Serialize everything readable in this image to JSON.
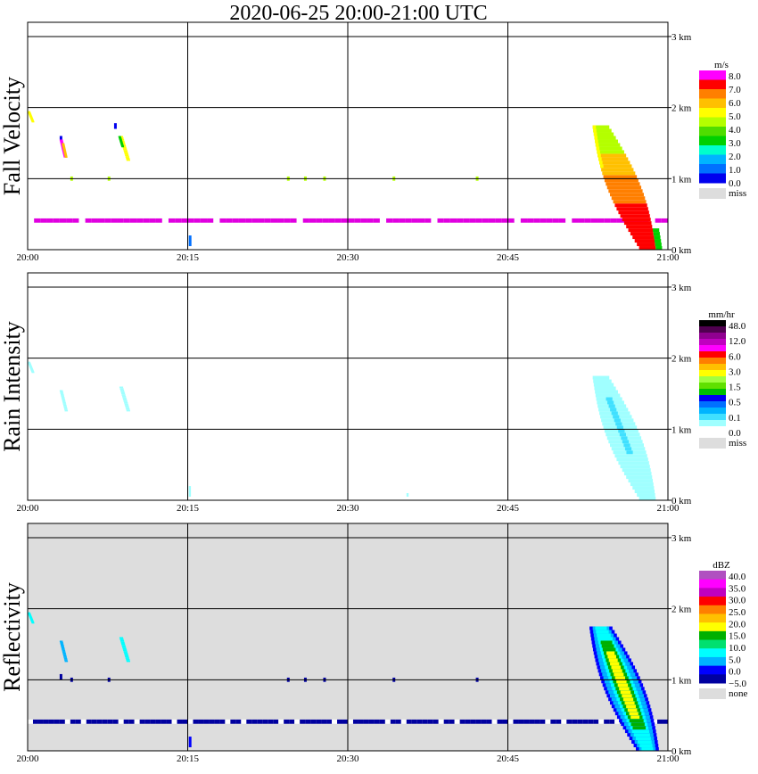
{
  "title": "2020-06-25   20:00-21:00 UTC",
  "chart_data": [
    {
      "type": "heatmap",
      "panel_label": "Fall Velocity",
      "x_ticks": [
        "20:00",
        "20:15",
        "20:30",
        "20:45",
        "21:00"
      ],
      "y_ticks": [
        "0 km",
        "1 km",
        "2 km",
        "3 km"
      ],
      "ylim_km": [
        0,
        3.2
      ],
      "xlim_min": [
        0,
        60
      ],
      "background": "#ffffff",
      "colorbar": {
        "unit": "m/s",
        "colors": [
          "#0000ee",
          "#0070ff",
          "#00b4ff",
          "#00ffcc",
          "#00d000",
          "#4fdd00",
          "#b4ff00",
          "#ffff00",
          "#ffc000",
          "#ff7f00",
          "#ff0000",
          "#ff00ff"
        ],
        "labels": [
          "8.0",
          "7.0",
          "6.0",
          "5.0",
          "4.0",
          "3.0",
          "2.0",
          "1.0",
          "0.0"
        ],
        "miss_label": "miss",
        "miss_color": "#dddddd"
      }
    },
    {
      "type": "heatmap",
      "panel_label": "Rain Intensity",
      "x_ticks": [
        "20:00",
        "20:15",
        "20:30",
        "20:45",
        "21:00"
      ],
      "y_ticks": [
        "0 km",
        "1 km",
        "2 km",
        "3 km"
      ],
      "ylim_km": [
        0,
        3.2
      ],
      "xlim_min": [
        0,
        60
      ],
      "background": "#ffffff",
      "colorbar": {
        "unit": "mm/hr",
        "colors": [
          "#ffffff",
          "#a0ffff",
          "#40e0ff",
          "#00b4ff",
          "#0070ff",
          "#0000ee",
          "#00c000",
          "#60e000",
          "#a0ff40",
          "#ffff00",
          "#ffc000",
          "#ff7f00",
          "#ff0000",
          "#ff00ff",
          "#c000c0",
          "#900090",
          "#500050",
          "#000000"
        ],
        "labels": [
          "48.0",
          "12.0",
          "6.0",
          "3.0",
          "1.5",
          "0.5",
          "0.1",
          "0.0"
        ],
        "miss_label": "miss",
        "miss_color": "#dddddd"
      }
    },
    {
      "type": "heatmap",
      "panel_label": "Reflectivity",
      "x_ticks": [
        "20:00",
        "20:15",
        "20:30",
        "20:45",
        "21:00"
      ],
      "y_ticks": [
        "0 km",
        "1 km",
        "2 km",
        "3 km"
      ],
      "ylim_km": [
        0,
        3.2
      ],
      "xlim_min": [
        0,
        60
      ],
      "background": "#dddddd",
      "colorbar": {
        "unit": "dBZ",
        "colors": [
          "#0000a0",
          "#0000ff",
          "#00b4ff",
          "#00ffff",
          "#00e070",
          "#00b000",
          "#ffff00",
          "#ffc000",
          "#ff7f00",
          "#ff0000",
          "#c000c0",
          "#ff00ff",
          "#b050c0"
        ],
        "labels": [
          "40.0",
          "35.0",
          "30.0",
          "25.0",
          "20.0",
          "15.0",
          "10.0",
          "5.0",
          "0.0",
          "−5.0"
        ],
        "miss_label": "none",
        "miss_color": "#dddddd"
      }
    }
  ]
}
